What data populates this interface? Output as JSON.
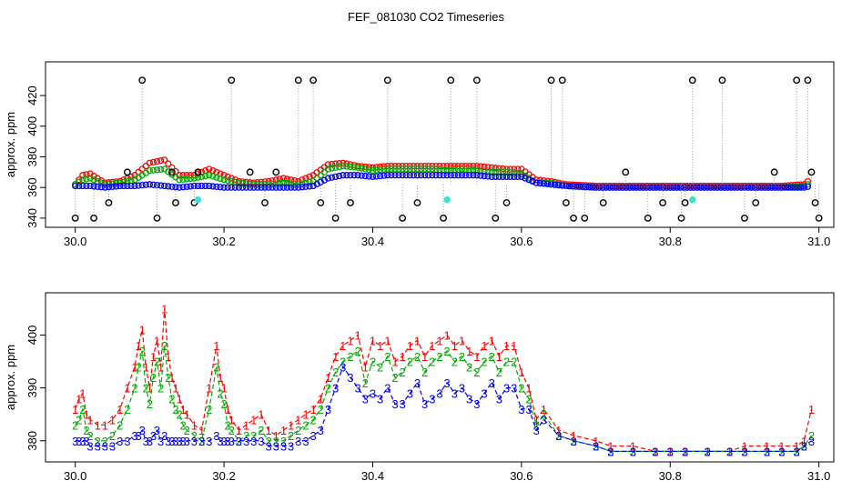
{
  "chart_data": [
    {
      "type": "scatter",
      "title": "FEF_081030  CO2 Timeseries",
      "xlabel": "",
      "ylabel": "approx. ppm",
      "xlim": [
        29.96,
        31.02
      ],
      "ylim": [
        334,
        442
      ],
      "xticks": [
        30.0,
        30.2,
        30.4,
        30.6,
        30.8,
        31.0
      ],
      "xtick_labels": [
        "30.0",
        "30.2",
        "30.4",
        "30.6",
        "30.8",
        "31.0"
      ],
      "yticks": [
        340,
        360,
        380,
        400,
        420
      ],
      "ytick_labels": [
        "340",
        "360",
        "380",
        "400",
        "420"
      ],
      "colors": {
        "s1": "#ff0000",
        "s2": "#00aa00",
        "s3": "#0000ff",
        "cal": "#000000",
        "flag": "#40e0d0"
      },
      "series": [
        {
          "name": "1",
          "color": "#ff0000",
          "x": [
            30.0,
            30.01,
            30.02,
            30.04,
            30.06,
            30.08,
            30.1,
            30.12,
            30.14,
            30.16,
            30.18,
            30.2,
            30.22,
            30.24,
            30.26,
            30.28,
            30.3,
            30.32,
            30.34,
            30.36,
            30.38,
            30.4,
            30.42,
            30.44,
            30.46,
            30.48,
            30.5,
            30.52,
            30.54,
            30.56,
            30.58,
            30.6,
            30.62,
            30.64,
            30.66,
            30.7,
            30.75,
            30.8,
            30.85,
            30.9,
            30.95,
            30.98,
            30.99
          ],
          "y": [
            362,
            368,
            369,
            363,
            364,
            368,
            376,
            378,
            368,
            368,
            372,
            368,
            364,
            363,
            364,
            366,
            364,
            368,
            375,
            376,
            374,
            373,
            374,
            374,
            374,
            374,
            374,
            374,
            374,
            373,
            372,
            372,
            365,
            364,
            362,
            361,
            361,
            361,
            361,
            361,
            361,
            362,
            366
          ]
        },
        {
          "name": "2",
          "color": "#00aa00",
          "x": [
            30.0,
            30.01,
            30.02,
            30.04,
            30.06,
            30.08,
            30.1,
            30.12,
            30.14,
            30.16,
            30.18,
            30.2,
            30.22,
            30.24,
            30.26,
            30.28,
            30.3,
            30.32,
            30.34,
            30.36,
            30.38,
            30.4,
            30.42,
            30.44,
            30.46,
            30.48,
            30.5,
            30.52,
            30.54,
            30.56,
            30.58,
            30.6,
            30.62,
            30.64,
            30.66,
            30.7,
            30.75,
            30.8,
            30.85,
            30.9,
            30.95,
            30.98,
            30.99
          ],
          "y": [
            362,
            365,
            366,
            362,
            363,
            365,
            371,
            372,
            365,
            366,
            368,
            365,
            363,
            362,
            362,
            363,
            362,
            364,
            372,
            374,
            373,
            371,
            372,
            372,
            372,
            372,
            371,
            372,
            371,
            370,
            370,
            369,
            363,
            363,
            361,
            360,
            360,
            360,
            360,
            360,
            360,
            361,
            363
          ]
        },
        {
          "name": "3",
          "color": "#0000ff",
          "x": [
            30.0,
            30.01,
            30.02,
            30.04,
            30.06,
            30.08,
            30.1,
            30.12,
            30.14,
            30.16,
            30.18,
            30.2,
            30.22,
            30.24,
            30.26,
            30.28,
            30.3,
            30.32,
            30.34,
            30.36,
            30.38,
            30.4,
            30.42,
            30.44,
            30.46,
            30.48,
            30.5,
            30.52,
            30.54,
            30.56,
            30.58,
            30.6,
            30.62,
            30.64,
            30.66,
            30.7,
            30.75,
            30.8,
            30.85,
            30.9,
            30.95,
            30.98,
            30.99
          ],
          "y": [
            361,
            361,
            361,
            360,
            361,
            361,
            362,
            361,
            360,
            361,
            361,
            360,
            360,
            360,
            360,
            360,
            360,
            361,
            366,
            368,
            368,
            367,
            368,
            368,
            368,
            368,
            368,
            368,
            368,
            367,
            367,
            367,
            363,
            362,
            361,
            360,
            360,
            360,
            360,
            360,
            360,
            360,
            361
          ]
        },
        {
          "name": "calibration",
          "color": "#000000",
          "x": [
            30.0,
            30.025,
            30.045,
            30.07,
            30.09,
            30.11,
            30.135,
            30.16,
            30.165,
            30.21,
            30.235,
            30.255,
            30.27,
            30.3,
            30.32,
            30.33,
            30.35,
            30.37,
            30.42,
            30.44,
            30.46,
            30.495,
            30.505,
            30.54,
            30.565,
            30.58,
            30.64,
            30.655,
            30.67,
            30.685,
            30.71,
            30.74,
            30.77,
            30.79,
            30.815,
            30.83,
            30.87,
            30.915,
            30.94,
            30.97,
            30.985,
            30.99,
            30.995,
            31.0,
            30.9,
            30.82,
            30.66,
            30.13
          ],
          "y": [
            340,
            340,
            350,
            370,
            430,
            340,
            350,
            350,
            370,
            430,
            370,
            350,
            370,
            430,
            430,
            350,
            340,
            350,
            430,
            340,
            350,
            340,
            430,
            430,
            340,
            350,
            430,
            430,
            340,
            340,
            350,
            370,
            340,
            350,
            340,
            430,
            430,
            350,
            370,
            430,
            430,
            370,
            350,
            340,
            340,
            350,
            350,
            370
          ]
        },
        {
          "name": "flagged",
          "color": "#40e0d0",
          "x": [
            30.165,
            30.5,
            30.83
          ],
          "y": [
            352,
            352,
            352
          ]
        }
      ]
    },
    {
      "type": "line",
      "title": "",
      "xlabel": "",
      "ylabel": "approx. ppm",
      "xlim": [
        29.96,
        31.02
      ],
      "ylim": [
        376,
        408
      ],
      "xticks": [
        30.0,
        30.2,
        30.4,
        30.6,
        30.8,
        31.0
      ],
      "xtick_labels": [
        "30.0",
        "30.2",
        "30.4",
        "30.6",
        "30.8",
        "31.0"
      ],
      "yticks": [
        380,
        390,
        400
      ],
      "ytick_labels": [
        "380",
        "390",
        "400"
      ],
      "series": [
        {
          "name": "1",
          "marker": "1",
          "color": "#ff0000",
          "x": [
            30.0,
            30.005,
            30.01,
            30.015,
            30.02,
            30.03,
            30.04,
            30.05,
            30.06,
            30.07,
            30.08,
            30.085,
            30.09,
            30.095,
            30.1,
            30.105,
            30.11,
            30.115,
            30.12,
            30.125,
            30.13,
            30.135,
            30.14,
            30.145,
            30.15,
            30.16,
            30.17,
            30.18,
            30.19,
            30.195,
            30.2,
            30.205,
            30.21,
            30.22,
            30.23,
            30.24,
            30.25,
            30.26,
            30.27,
            30.28,
            30.29,
            30.3,
            30.31,
            30.32,
            30.33,
            30.34,
            30.35,
            30.36,
            30.37,
            30.38,
            30.39,
            30.4,
            30.41,
            30.42,
            30.43,
            30.44,
            30.45,
            30.46,
            30.47,
            30.48,
            30.49,
            30.5,
            30.51,
            30.52,
            30.53,
            30.54,
            30.55,
            30.56,
            30.57,
            30.58,
            30.59,
            30.6,
            30.61,
            30.62,
            30.63,
            30.65,
            30.67,
            30.7,
            30.72,
            30.75,
            30.78,
            30.8,
            30.82,
            30.85,
            30.88,
            30.9,
            30.93,
            30.95,
            30.97,
            30.98,
            30.99
          ],
          "y": [
            386,
            388,
            389,
            385,
            384,
            383,
            383,
            384,
            386,
            390,
            394,
            398,
            401,
            394,
            390,
            396,
            399,
            394,
            405,
            396,
            392,
            390,
            388,
            386,
            385,
            383,
            382,
            390,
            398,
            392,
            390,
            386,
            384,
            382,
            383,
            384,
            385,
            382,
            381,
            382,
            383,
            384,
            385,
            386,
            388,
            392,
            396,
            398,
            399,
            400,
            394,
            399,
            398,
            399,
            395,
            396,
            398,
            399,
            396,
            398,
            399,
            400,
            398,
            399,
            397,
            396,
            398,
            399,
            396,
            398,
            398,
            393,
            390,
            384,
            386,
            382,
            381,
            380,
            379,
            379,
            378,
            378,
            378,
            378,
            378,
            379,
            379,
            379,
            379,
            380,
            386
          ]
        },
        {
          "name": "2",
          "marker": "2",
          "color": "#00aa00",
          "x": [
            30.0,
            30.005,
            30.01,
            30.015,
            30.02,
            30.03,
            30.04,
            30.05,
            30.06,
            30.07,
            30.08,
            30.085,
            30.09,
            30.095,
            30.1,
            30.105,
            30.11,
            30.115,
            30.12,
            30.125,
            30.13,
            30.135,
            30.14,
            30.145,
            30.15,
            30.16,
            30.17,
            30.18,
            30.19,
            30.195,
            30.2,
            30.205,
            30.21,
            30.22,
            30.23,
            30.24,
            30.25,
            30.26,
            30.27,
            30.28,
            30.29,
            30.3,
            30.31,
            30.32,
            30.33,
            30.34,
            30.35,
            30.36,
            30.37,
            30.38,
            30.39,
            30.4,
            30.41,
            30.42,
            30.43,
            30.44,
            30.45,
            30.46,
            30.47,
            30.48,
            30.49,
            30.5,
            30.51,
            30.52,
            30.53,
            30.54,
            30.55,
            30.56,
            30.57,
            30.58,
            30.59,
            30.6,
            30.61,
            30.62,
            30.63,
            30.65,
            30.67,
            30.7,
            30.72,
            30.75,
            30.78,
            30.8,
            30.82,
            30.85,
            30.88,
            30.9,
            30.93,
            30.95,
            30.97,
            30.98,
            30.99
          ],
          "y": [
            383,
            384,
            386,
            382,
            381,
            380,
            380,
            381,
            383,
            386,
            390,
            394,
            397,
            390,
            387,
            392,
            395,
            390,
            398,
            392,
            388,
            386,
            385,
            383,
            382,
            381,
            380,
            386,
            394,
            389,
            387,
            383,
            382,
            380,
            381,
            381,
            382,
            380,
            380,
            380,
            381,
            382,
            383,
            384,
            386,
            390,
            393,
            395,
            396,
            397,
            391,
            395,
            394,
            396,
            392,
            393,
            395,
            396,
            393,
            395,
            396,
            397,
            395,
            396,
            394,
            393,
            395,
            396,
            393,
            395,
            395,
            390,
            388,
            383,
            385,
            381,
            380,
            379,
            378,
            378,
            378,
            378,
            378,
            378,
            378,
            378,
            378,
            378,
            378,
            379,
            381
          ]
        },
        {
          "name": "3",
          "marker": "3",
          "color": "#0000ff",
          "x": [
            30.0,
            30.005,
            30.01,
            30.015,
            30.02,
            30.03,
            30.04,
            30.05,
            30.06,
            30.07,
            30.08,
            30.085,
            30.09,
            30.095,
            30.1,
            30.105,
            30.11,
            30.115,
            30.12,
            30.125,
            30.13,
            30.135,
            30.14,
            30.145,
            30.15,
            30.16,
            30.17,
            30.18,
            30.19,
            30.195,
            30.2,
            30.205,
            30.21,
            30.22,
            30.23,
            30.24,
            30.25,
            30.26,
            30.27,
            30.28,
            30.29,
            30.3,
            30.31,
            30.32,
            30.33,
            30.34,
            30.35,
            30.36,
            30.37,
            30.38,
            30.39,
            30.4,
            30.41,
            30.42,
            30.43,
            30.44,
            30.45,
            30.46,
            30.47,
            30.48,
            30.49,
            30.5,
            30.51,
            30.52,
            30.53,
            30.54,
            30.55,
            30.56,
            30.57,
            30.58,
            30.59,
            30.6,
            30.61,
            30.62,
            30.63,
            30.65,
            30.67,
            30.7,
            30.72,
            30.75,
            30.78,
            30.8,
            30.82,
            30.85,
            30.88,
            30.9,
            30.93,
            30.95,
            30.97,
            30.98,
            30.99
          ],
          "y": [
            380,
            380,
            380,
            380,
            379,
            379,
            379,
            379,
            380,
            380,
            381,
            381,
            382,
            380,
            380,
            381,
            382,
            380,
            381,
            380,
            380,
            380,
            380,
            380,
            380,
            380,
            380,
            380,
            381,
            380,
            380,
            380,
            380,
            380,
            380,
            380,
            380,
            379,
            379,
            379,
            379,
            380,
            380,
            381,
            382,
            386,
            390,
            394,
            392,
            390,
            388,
            389,
            388,
            390,
            387,
            387,
            389,
            391,
            387,
            388,
            389,
            391,
            389,
            390,
            388,
            387,
            389,
            391,
            388,
            390,
            390,
            386,
            386,
            382,
            384,
            381,
            380,
            379,
            378,
            378,
            378,
            378,
            378,
            378,
            378,
            378,
            378,
            378,
            378,
            379,
            380
          ]
        }
      ]
    }
  ]
}
